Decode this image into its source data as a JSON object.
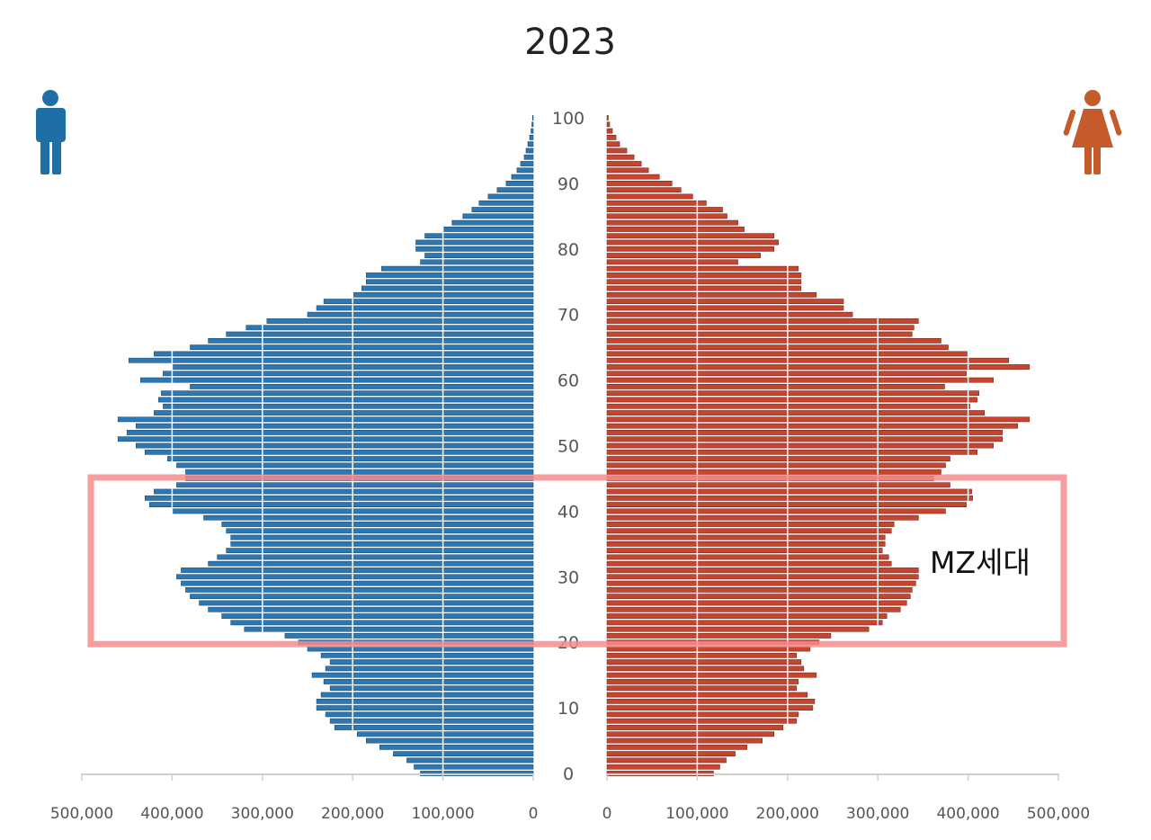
{
  "chart_data": {
    "type": "population-pyramid",
    "title": "2023",
    "x_unit": "persons",
    "xlim": [
      0,
      500000
    ],
    "x_ticks_left": [
      "500,000",
      "400,000",
      "300,000",
      "200,000",
      "100,000",
      "0"
    ],
    "x_ticks_right": [
      "0",
      "100,000",
      "200,000",
      "300,000",
      "400,000",
      "500,000"
    ],
    "age_ticks": [
      "0",
      "10",
      "20",
      "30",
      "40",
      "50",
      "60",
      "70",
      "80",
      "90",
      "100"
    ],
    "highlight": {
      "label": "MZ세대",
      "age_from": 20,
      "age_to": 45
    },
    "legend": [
      {
        "name": "male",
        "icon": "male-person-icon",
        "color": "#1f6fa6"
      },
      {
        "name": "female",
        "icon": "female-person-icon",
        "color": "#c55a2b"
      }
    ],
    "series": [
      {
        "name": "male",
        "color": "#2d77b2",
        "values": [
          125000,
          132000,
          140000,
          155000,
          170000,
          185000,
          195000,
          220000,
          225000,
          230000,
          240000,
          240000,
          235000,
          225000,
          232000,
          245000,
          230000,
          225000,
          235000,
          250000,
          260000,
          275000,
          320000,
          335000,
          345000,
          360000,
          370000,
          380000,
          385000,
          390000,
          395000,
          390000,
          360000,
          350000,
          340000,
          335000,
          335000,
          340000,
          345000,
          365000,
          400000,
          425000,
          430000,
          420000,
          395000,
          385000,
          385000,
          395000,
          405000,
          430000,
          440000,
          460000,
          450000,
          440000,
          460000,
          420000,
          410000,
          415000,
          412000,
          380000,
          435000,
          410000,
          400000,
          448000,
          420000,
          380000,
          360000,
          340000,
          318000,
          295000,
          250000,
          240000,
          232000,
          200000,
          190000,
          185000,
          185000,
          168000,
          125000,
          120000,
          130000,
          130000,
          120000,
          100000,
          90000,
          78000,
          68000,
          60000,
          50000,
          40000,
          30000,
          24000,
          18000,
          14000,
          10000,
          8000,
          6000,
          4000,
          2500,
          1500,
          800
        ]
      },
      {
        "name": "female",
        "color": "#c7452f",
        "values": [
          118000,
          125000,
          132000,
          142000,
          155000,
          172000,
          185000,
          195000,
          210000,
          212000,
          228000,
          230000,
          222000,
          210000,
          212000,
          232000,
          218000,
          215000,
          210000,
          225000,
          235000,
          248000,
          290000,
          305000,
          310000,
          325000,
          332000,
          336000,
          338000,
          342000,
          345000,
          345000,
          315000,
          312000,
          305000,
          308000,
          308000,
          315000,
          318000,
          345000,
          375000,
          398000,
          405000,
          404000,
          380000,
          362000,
          370000,
          375000,
          380000,
          410000,
          428000,
          438000,
          438000,
          455000,
          468000,
          418000,
          402000,
          410000,
          412000,
          374000,
          428000,
          398000,
          468000,
          445000,
          400000,
          378000,
          370000,
          338000,
          340000,
          345000,
          272000,
          262000,
          262000,
          232000,
          215000,
          215000,
          215000,
          212000,
          145000,
          170000,
          185000,
          190000,
          185000,
          152000,
          145000,
          133000,
          128000,
          110000,
          95000,
          82000,
          72000,
          58000,
          46000,
          38000,
          30000,
          22000,
          14000,
          10000,
          6000,
          3000,
          1500
        ]
      }
    ]
  }
}
